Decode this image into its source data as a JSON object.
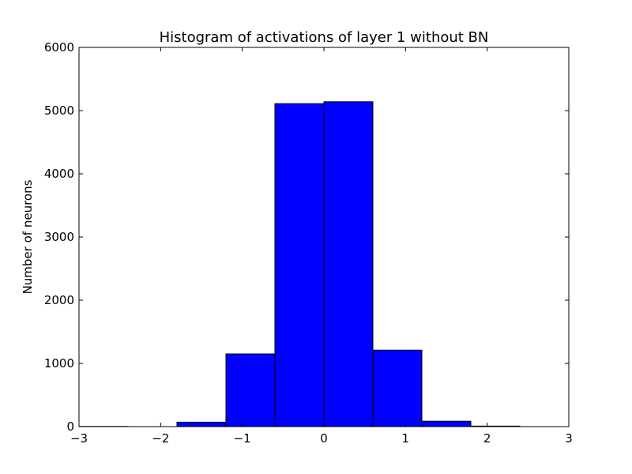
{
  "chart_data": {
    "type": "bar",
    "title": "Histogram of activations of layer 1  without BN",
    "xlabel": "",
    "ylabel": "Number of neurons",
    "xlim": [
      -3,
      3
    ],
    "ylim": [
      0,
      6000
    ],
    "bar_color": "#0000ff",
    "edge_color": "#000000",
    "bins": [
      {
        "x0": -3.0,
        "x1": -2.4,
        "value": 3
      },
      {
        "x0": -2.4,
        "x1": -1.8,
        "value": 0
      },
      {
        "x0": -1.8,
        "x1": -1.2,
        "value": 70
      },
      {
        "x0": -1.2,
        "x1": -0.6,
        "value": 1150
      },
      {
        "x0": -0.6,
        "x1": 0.0,
        "value": 5110
      },
      {
        "x0": 0.0,
        "x1": 0.6,
        "value": 5140
      },
      {
        "x0": 0.6,
        "x1": 1.2,
        "value": 1210
      },
      {
        "x0": 1.2,
        "x1": 1.8,
        "value": 85
      },
      {
        "x0": 1.8,
        "x1": 2.4,
        "value": 8
      }
    ],
    "x_ticks": [
      {
        "value": -3,
        "label": "−3"
      },
      {
        "value": -2,
        "label": "−2"
      },
      {
        "value": -1,
        "label": "−1"
      },
      {
        "value": 0,
        "label": "0"
      },
      {
        "value": 1,
        "label": "1"
      },
      {
        "value": 2,
        "label": "2"
      },
      {
        "value": 3,
        "label": "3"
      }
    ],
    "y_ticks": [
      {
        "value": 0,
        "label": "0"
      },
      {
        "value": 1000,
        "label": "1000"
      },
      {
        "value": 2000,
        "label": "2000"
      },
      {
        "value": 3000,
        "label": "3000"
      },
      {
        "value": 4000,
        "label": "4000"
      },
      {
        "value": 5000,
        "label": "5000"
      },
      {
        "value": 6000,
        "label": "6000"
      }
    ],
    "grid": false,
    "legend": "none"
  }
}
